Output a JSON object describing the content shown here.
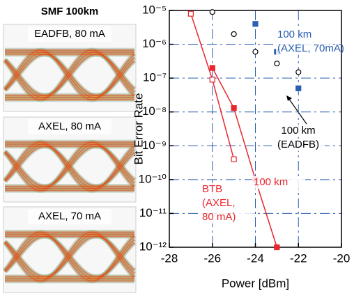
{
  "eye_panel": {
    "title": "SMF 100km",
    "labels": [
      "EADFB, 80 mA",
      "AXEL, 80 mA",
      "AXEL, 70 mA"
    ]
  },
  "chart_data": {
    "type": "scatter",
    "log_y": true,
    "grid": true,
    "x_label": "Power [dBm]",
    "y_label": "Bit Error Rate",
    "xlim": [
      -28,
      -20
    ],
    "xticks": [
      -28,
      -26,
      -24,
      -22,
      -20
    ],
    "ylim": [
      1e-12,
      1e-05
    ],
    "yticks": [
      {
        "value": 1e-12,
        "label": "10⁻¹²"
      },
      {
        "value": 1e-11,
        "label": "10⁻¹¹"
      },
      {
        "value": 1e-10,
        "label": "10⁻¹⁰"
      },
      {
        "value": 1e-09,
        "label": "10⁻⁹"
      },
      {
        "value": 1e-08,
        "label": "10⁻⁸"
      },
      {
        "value": 1e-07,
        "label": "10⁻⁷"
      },
      {
        "value": 1e-06,
        "label": "10⁻⁶"
      },
      {
        "value": 1e-05,
        "label": "10⁻⁵"
      }
    ],
    "series": [
      {
        "color": "#e8262e",
        "marker": "square",
        "filled": false,
        "line": true,
        "x": [
          -27,
          -26,
          -25
        ],
        "values": [
          8e-06,
          9e-08,
          4e-10
        ]
      },
      {
        "color": "#e8262e",
        "marker": "square",
        "filled": true,
        "line": true,
        "x": [
          -26,
          -25,
          -24,
          -23
        ],
        "values": [
          2e-07,
          1.3e-08,
          1e-10,
          1e-12
        ]
      },
      {
        "color": "#2a5fb0",
        "marker": "square",
        "filled": true,
        "line": false,
        "x": [
          -24,
          -23,
          -22
        ],
        "values": [
          4e-06,
          6e-07,
          5e-08
        ]
      },
      {
        "color": "#000000",
        "marker": "circle",
        "filled": false,
        "line": false,
        "x": [
          -26,
          -25,
          -24,
          -23,
          -22
        ],
        "values": [
          9e-06,
          2e-06,
          6e-07,
          2.7e-07,
          1.5e-07
        ]
      }
    ],
    "annotations": [
      {
        "lines": [
          "100 km",
          "(AXEL, 70mA)"
        ],
        "color": "#2a5fb0"
      },
      {
        "lines": [
          "100 km",
          "(EADFB)"
        ],
        "color": "#000000"
      },
      {
        "lines": [
          "BTB",
          "(AXEL,",
          "80 mA)"
        ],
        "color": "#e8262e"
      },
      {
        "lines": [
          "100 km"
        ],
        "color": "#e8262e"
      }
    ]
  }
}
